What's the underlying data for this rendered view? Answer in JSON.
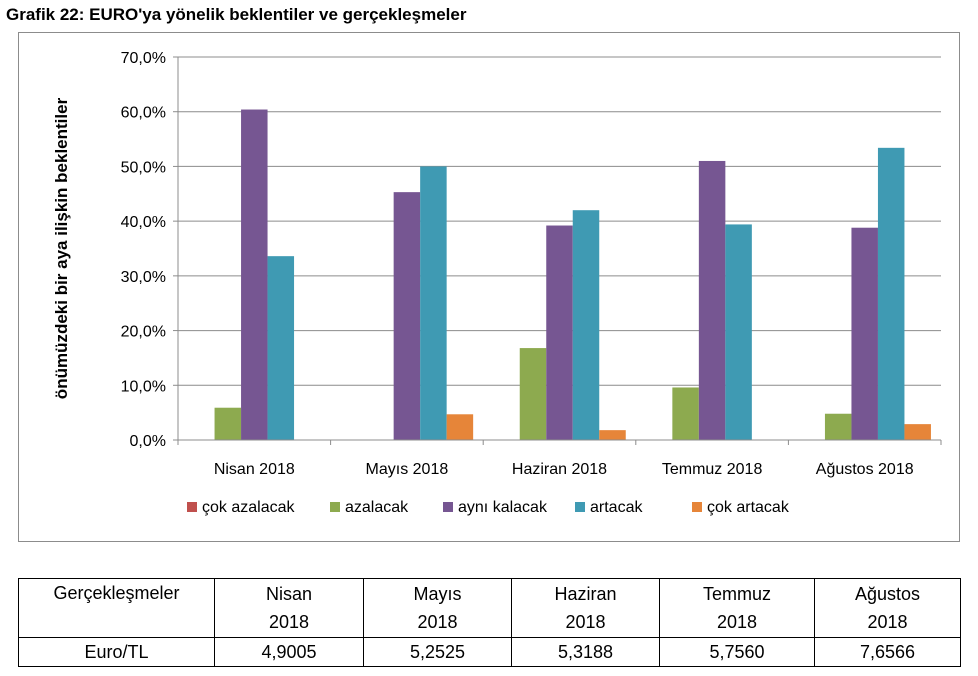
{
  "title": "Grafik 22: EURO'ya yönelik beklentiler ve gerçekleşmeler",
  "chart_data": {
    "type": "bar",
    "title": "Grafik 22: EURO'ya yönelik beklentiler ve gerçekleşmeler",
    "ylabel": "önümüzdeki bir aya ilişkin beklentiler",
    "xlabel": "",
    "ylim": [
      0,
      70
    ],
    "yticks": [
      "0,0%",
      "10,0%",
      "20,0%",
      "30,0%",
      "40,0%",
      "50,0%",
      "60,0%",
      "70,0%"
    ],
    "ytick_values": [
      0,
      10,
      20,
      30,
      40,
      50,
      60,
      70
    ],
    "grid": true,
    "legend_position": "bottom",
    "categories": [
      "Nisan 2018",
      "Mayıs 2018",
      "Haziran 2018",
      "Temmuz 2018",
      "Ağustos 2018"
    ],
    "series": [
      {
        "name": "çok azalacak",
        "color": "#C0504D",
        "values": [
          0,
          0,
          0,
          0,
          0
        ]
      },
      {
        "name": "azalacak",
        "color": "#8DAA4F",
        "values": [
          5.9,
          0,
          16.8,
          9.6,
          4.8
        ]
      },
      {
        "name": "aynı kalacak",
        "color": "#765692",
        "values": [
          60.4,
          45.3,
          39.2,
          51.0,
          38.8
        ]
      },
      {
        "name": "artacak",
        "color": "#3F9AB3",
        "values": [
          33.6,
          50.0,
          42.0,
          39.4,
          53.4
        ]
      },
      {
        "name": "çok artacak",
        "color": "#E68539",
        "values": [
          0,
          4.7,
          1.8,
          0,
          2.9
        ]
      }
    ]
  },
  "table": {
    "header": [
      "Gerçekleşmeler",
      [
        "Nisan",
        "2018"
      ],
      [
        "Mayıs",
        "2018"
      ],
      [
        "Haziran",
        "2018"
      ],
      [
        "Temmuz",
        "2018"
      ],
      [
        "Ağustos",
        "2018"
      ]
    ],
    "rows": [
      [
        "Euro/TL",
        "4,9005",
        "5,2525",
        "5,3188",
        "5,7560",
        "7,6566"
      ]
    ]
  }
}
